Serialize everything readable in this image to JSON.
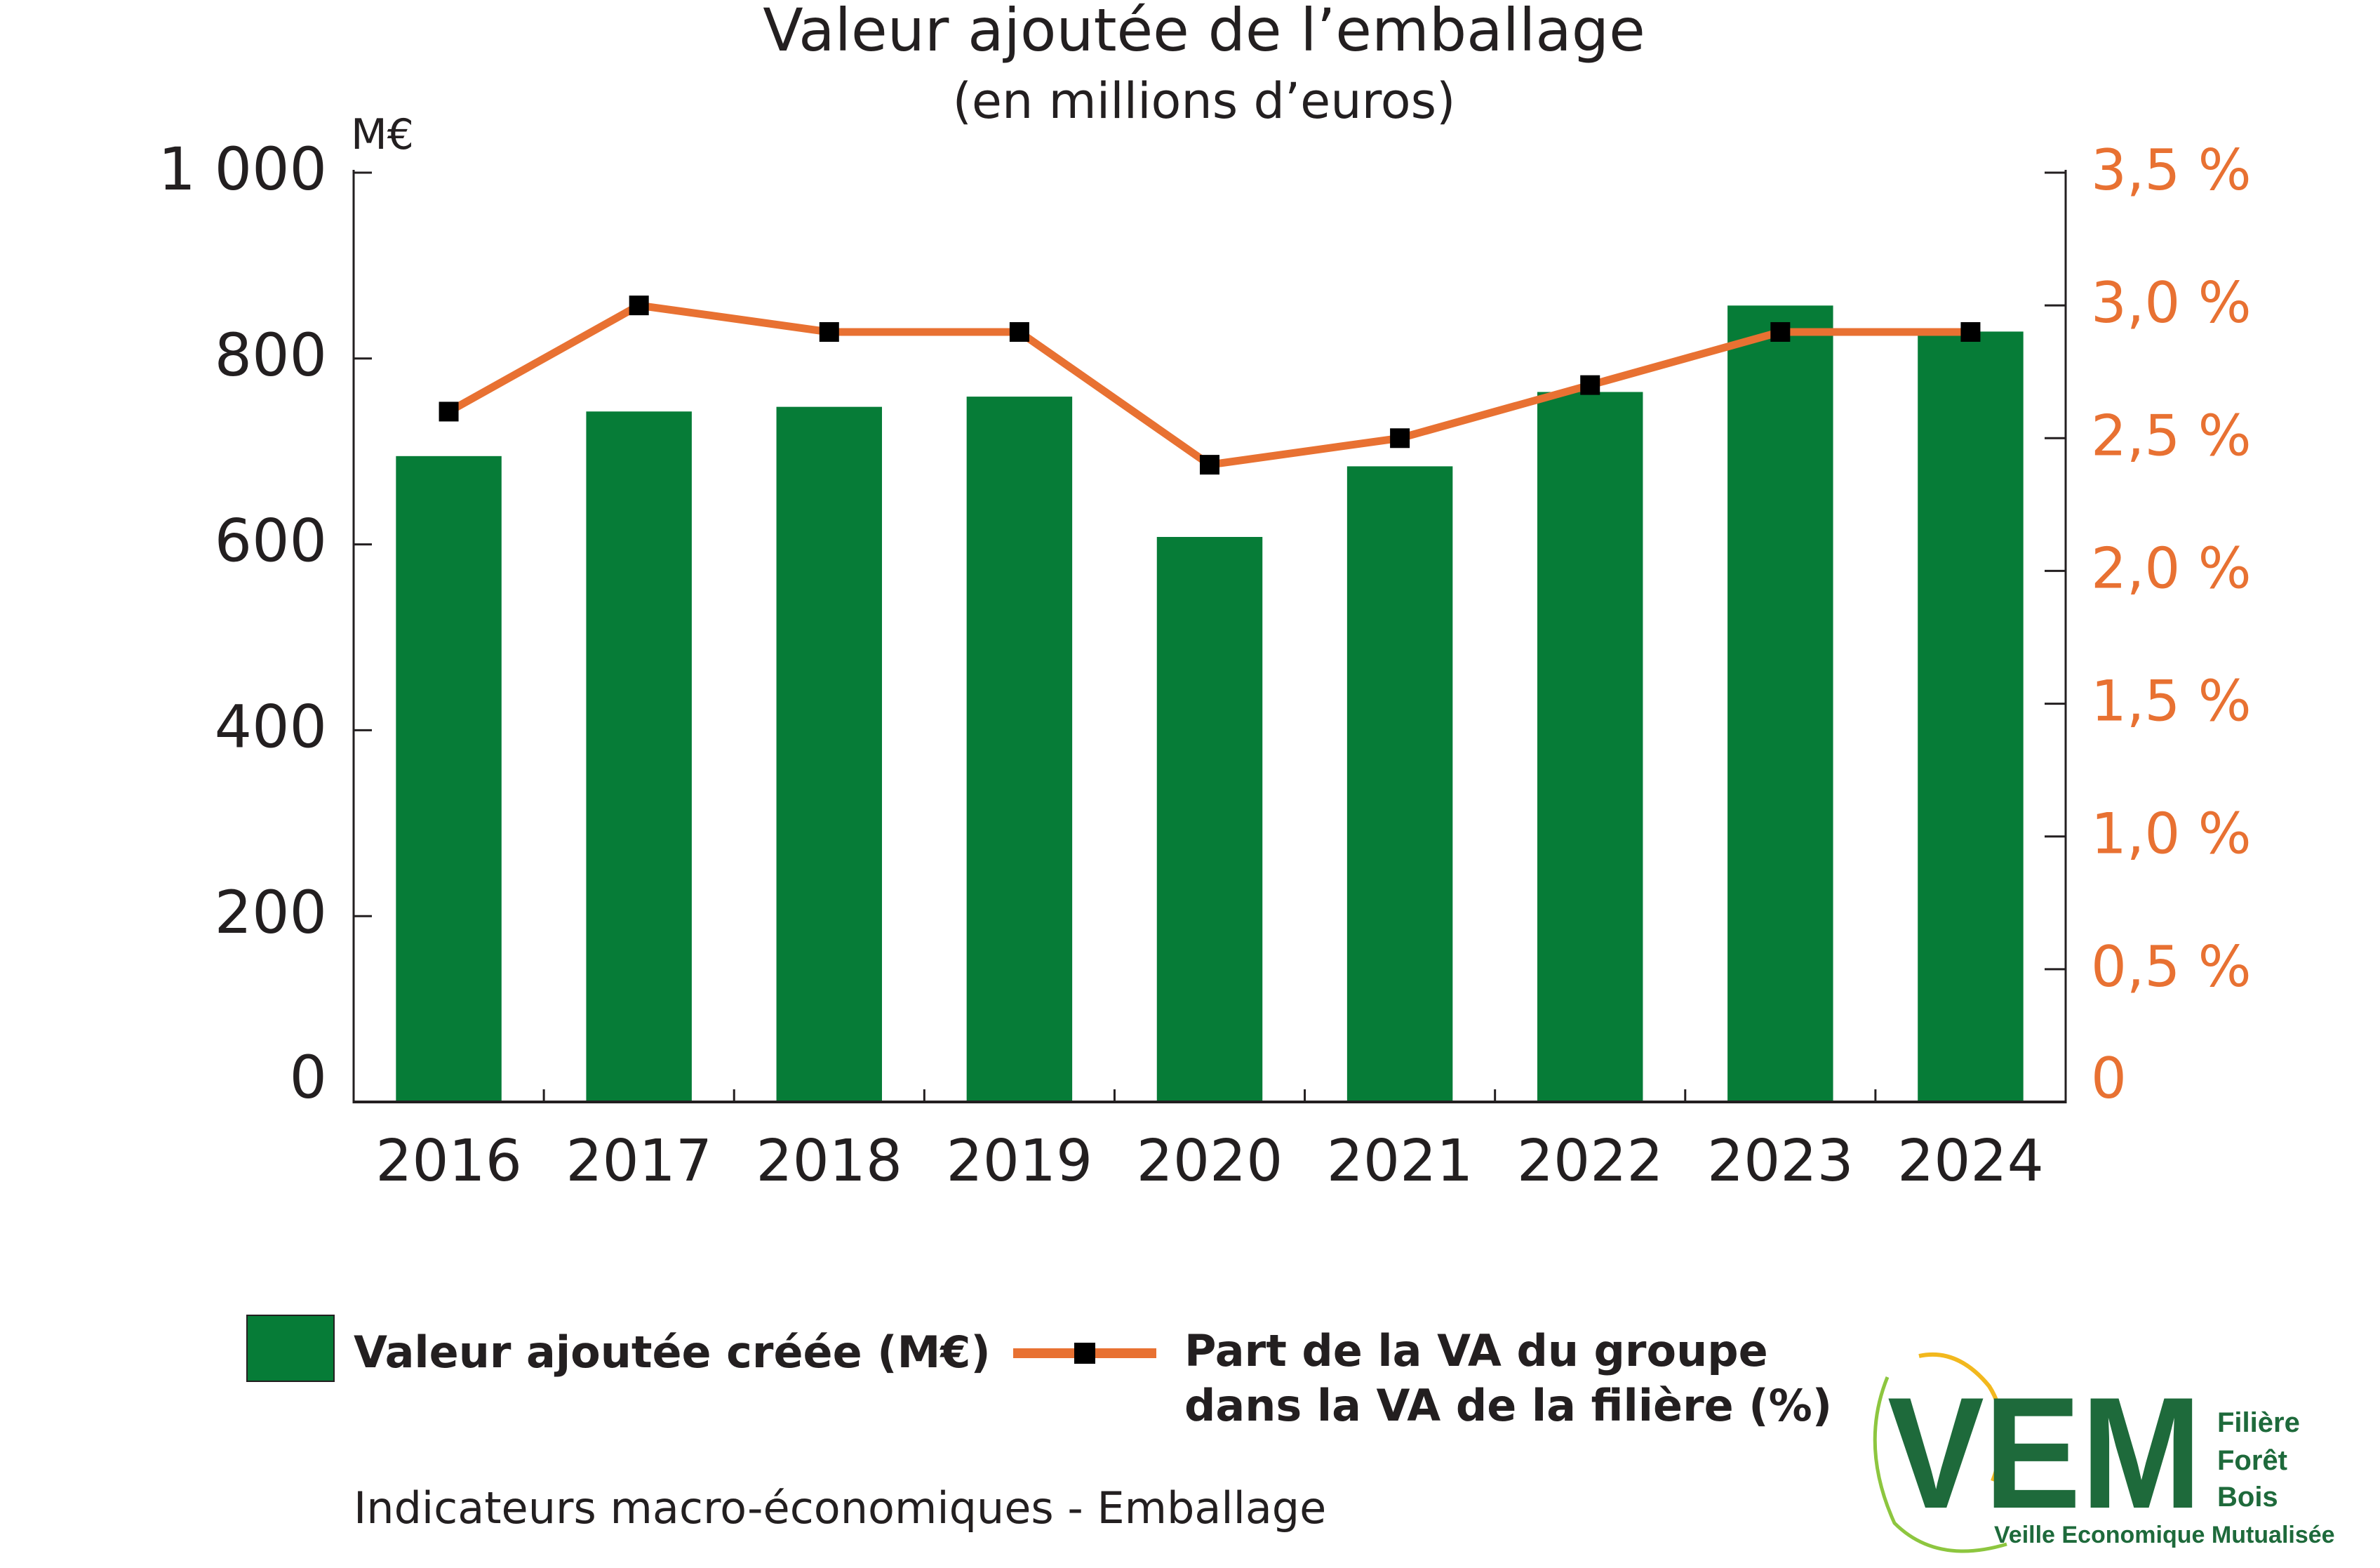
{
  "chart_data": {
    "type": "bar",
    "title": "Valeur ajoutée de l’emballage",
    "subtitle": "(en millions d’euros)",
    "y_unit_label": "M€",
    "categories": [
      "2016",
      "2017",
      "2018",
      "2019",
      "2020",
      "2021",
      "2022",
      "2023",
      "2024"
    ],
    "ylim": [
      0,
      1000
    ],
    "y_ticks": [
      "0",
      "200",
      "400",
      "600",
      "800",
      "1 000"
    ],
    "y2lim": [
      0,
      3.5
    ],
    "y2_ticks": [
      "0",
      "0,5 %",
      "1,0 %",
      "1,5 %",
      "2,0 %",
      "2,5 %",
      "3,0 %",
      "3,5 %"
    ],
    "grid": false,
    "legend_position": "bottom",
    "series": [
      {
        "name": "Valeur ajoutée créée (M€)",
        "type": "bar",
        "axis": "left",
        "color": "#067c37",
        "values": [
          695,
          743,
          748,
          759,
          608,
          684,
          764,
          857,
          829
        ]
      },
      {
        "name": "Part de la VA du groupe dans la VA de la filière (%)",
        "name_lines": [
          "Part de la VA du groupe",
          "dans la VA de la filière (%)"
        ],
        "type": "line",
        "axis": "right",
        "color": "#e87132",
        "marker_color": "#000000",
        "values": [
          2.6,
          3.0,
          2.9,
          2.9,
          2.4,
          2.5,
          2.7,
          2.9,
          2.9
        ]
      }
    ],
    "y2_tick_color": "#e87132"
  },
  "footer": {
    "text": "Indicateurs macro-économiques - Emballage"
  },
  "logo": {
    "letters": "VEM",
    "line1": "Filière",
    "line2": "Forêt",
    "line3": "Bois",
    "tagline": "Veille Economique Mutualisée",
    "color": "#1e6a3b",
    "accent_color": "#f2b81e"
  }
}
